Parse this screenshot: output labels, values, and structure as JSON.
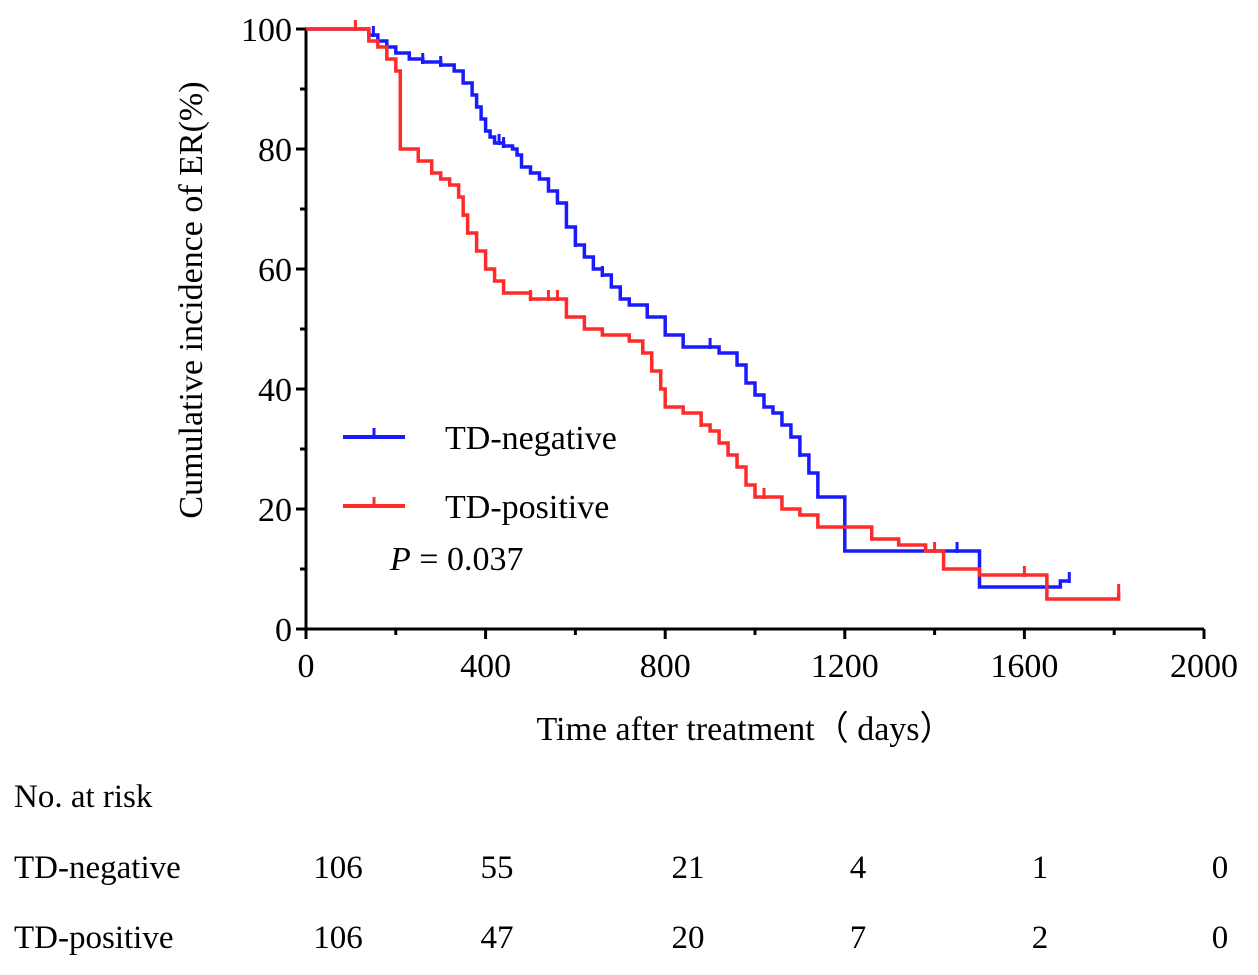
{
  "chart_data": {
    "type": "line",
    "title": "",
    "xlabel": "Time after treatment（ days）",
    "ylabel": "Cumulative incidence of ER(%)",
    "xlim": [
      0,
      2000
    ],
    "ylim": [
      0,
      100
    ],
    "x_ticks": [
      "0",
      "400",
      "800",
      "1200",
      "1600",
      "2000"
    ],
    "y_ticks": [
      "0",
      "20",
      "40",
      "60",
      "80",
      "100"
    ],
    "legend": "center-left",
    "p_value_label": "P",
    "p_value_text": " = 0.037",
    "series": [
      {
        "name": "TD-negative",
        "color": "#1a1aff",
        "steps": [
          [
            0,
            100
          ],
          [
            100,
            100
          ],
          [
            140,
            99
          ],
          [
            160,
            98
          ],
          [
            180,
            97
          ],
          [
            200,
            96
          ],
          [
            230,
            95
          ],
          [
            260,
            94.5
          ],
          [
            300,
            94
          ],
          [
            330,
            93
          ],
          [
            350,
            91
          ],
          [
            370,
            89
          ],
          [
            380,
            87
          ],
          [
            390,
            85
          ],
          [
            400,
            83
          ],
          [
            410,
            82
          ],
          [
            420,
            81
          ],
          [
            440,
            80.5
          ],
          [
            460,
            80
          ],
          [
            470,
            79
          ],
          [
            480,
            77
          ],
          [
            500,
            76
          ],
          [
            520,
            75
          ],
          [
            540,
            73
          ],
          [
            560,
            71
          ],
          [
            580,
            67
          ],
          [
            600,
            64
          ],
          [
            620,
            62
          ],
          [
            640,
            60
          ],
          [
            660,
            59
          ],
          [
            680,
            57
          ],
          [
            700,
            55
          ],
          [
            720,
            54
          ],
          [
            760,
            52
          ],
          [
            800,
            49
          ],
          [
            840,
            47
          ],
          [
            880,
            47
          ],
          [
            920,
            46
          ],
          [
            960,
            44
          ],
          [
            980,
            41
          ],
          [
            1000,
            39
          ],
          [
            1020,
            37
          ],
          [
            1040,
            36
          ],
          [
            1060,
            34
          ],
          [
            1080,
            32
          ],
          [
            1100,
            29
          ],
          [
            1120,
            26
          ],
          [
            1140,
            22
          ],
          [
            1200,
            13
          ],
          [
            1300,
            13
          ],
          [
            1400,
            13
          ],
          [
            1500,
            7
          ],
          [
            1600,
            7
          ],
          [
            1680,
            8
          ],
          [
            1700,
            8
          ]
        ],
        "censor_x": [
          150,
          260,
          300,
          430,
          440,
          600,
          660,
          900,
          1100,
          1450,
          1700
        ]
      },
      {
        "name": "TD-positive",
        "color": "#ff2a2a",
        "steps": [
          [
            0,
            100
          ],
          [
            100,
            100
          ],
          [
            140,
            98
          ],
          [
            160,
            97
          ],
          [
            180,
            95
          ],
          [
            200,
            93
          ],
          [
            210,
            80
          ],
          [
            250,
            78
          ],
          [
            280,
            76
          ],
          [
            300,
            75
          ],
          [
            320,
            74
          ],
          [
            340,
            72
          ],
          [
            350,
            69
          ],
          [
            360,
            66
          ],
          [
            380,
            63
          ],
          [
            400,
            60
          ],
          [
            420,
            58
          ],
          [
            440,
            56
          ],
          [
            480,
            56
          ],
          [
            500,
            55
          ],
          [
            540,
            55
          ],
          [
            580,
            52
          ],
          [
            620,
            50
          ],
          [
            660,
            49
          ],
          [
            720,
            48
          ],
          [
            750,
            46
          ],
          [
            770,
            43
          ],
          [
            790,
            40
          ],
          [
            800,
            37
          ],
          [
            840,
            36
          ],
          [
            880,
            34
          ],
          [
            900,
            33
          ],
          [
            920,
            31
          ],
          [
            940,
            29
          ],
          [
            960,
            27
          ],
          [
            980,
            24
          ],
          [
            1000,
            22
          ],
          [
            1020,
            22
          ],
          [
            1060,
            20
          ],
          [
            1100,
            19
          ],
          [
            1140,
            17
          ],
          [
            1200,
            17
          ],
          [
            1260,
            15
          ],
          [
            1320,
            14
          ],
          [
            1380,
            13
          ],
          [
            1420,
            10
          ],
          [
            1500,
            9
          ],
          [
            1580,
            9
          ],
          [
            1650,
            5
          ],
          [
            1700,
            5
          ],
          [
            1800,
            5
          ],
          [
            1810,
            6
          ]
        ],
        "censor_x": [
          110,
          350,
          500,
          540,
          560,
          880,
          1020,
          1400,
          1600,
          1810
        ]
      }
    ],
    "risk_table": {
      "title": "No. at risk",
      "time_points": [
        "0",
        "400",
        "800",
        "1200",
        "1600",
        "2000"
      ],
      "rows": [
        {
          "label": "TD-negative",
          "values": [
            "106",
            "55",
            "21",
            "4",
            "1",
            "0"
          ]
        },
        {
          "label": "TD-positive",
          "values": [
            "106",
            "47",
            "20",
            "7",
            "2",
            "0"
          ]
        }
      ]
    }
  }
}
